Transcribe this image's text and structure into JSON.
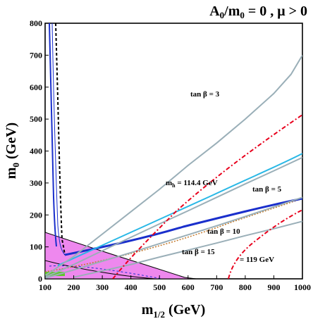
{
  "chart_data": {
    "type": "line",
    "title": "A0/m0 = 0 ,  μ > 0",
    "xlabel": "m1/2 (GeV)",
    "ylabel": "m0 (GeV)",
    "xlim": [
      100,
      1000
    ],
    "ylim": [
      0,
      800
    ],
    "x_ticks": [
      "100",
      "200",
      "300",
      "400",
      "500",
      "600",
      "700",
      "800",
      "900",
      "1000"
    ],
    "y_ticks": [
      "0",
      "100",
      "200",
      "300",
      "400",
      "500",
      "600",
      "700",
      "800"
    ],
    "grid": false,
    "colors": {
      "tan_beta": "#9aafb8",
      "mh_114": "#29b8e6",
      "relic_band": "#1a2fcc",
      "charged_lsp": "#ee88ee",
      "bsg": "#5ec72b",
      "mh_119": "#e8001c",
      "chargino": "#000000",
      "g2": "#c47a2c"
    },
    "series": [
      {
        "name": "tan β = 3",
        "values": [
          [
            100,
            10
          ],
          [
            200,
            70
          ],
          [
            300,
            140
          ],
          [
            400,
            210
          ],
          [
            500,
            280
          ],
          [
            600,
            355
          ],
          [
            700,
            425
          ],
          [
            800,
            500
          ],
          [
            900,
            580
          ],
          [
            960,
            640
          ],
          [
            1000,
            700
          ]
        ]
      },
      {
        "name": "tan β = 5",
        "values": [
          [
            100,
            5
          ],
          [
            200,
            45
          ],
          [
            300,
            88
          ],
          [
            400,
            130
          ],
          [
            500,
            172
          ],
          [
            600,
            213
          ],
          [
            700,
            255
          ],
          [
            800,
            297
          ],
          [
            900,
            338
          ],
          [
            1000,
            380
          ]
        ]
      },
      {
        "name": "tan β = 10",
        "values": [
          [
            100,
            2
          ],
          [
            200,
            28
          ],
          [
            300,
            55
          ],
          [
            400,
            82
          ],
          [
            500,
            110
          ],
          [
            600,
            138
          ],
          [
            700,
            166
          ],
          [
            800,
            195
          ],
          [
            900,
            225
          ],
          [
            1000,
            255
          ]
        ]
      },
      {
        "name": "tan β = 15",
        "values": [
          [
            200,
            5
          ],
          [
            300,
            25
          ],
          [
            400,
            45
          ],
          [
            500,
            68
          ],
          [
            600,
            90
          ],
          [
            700,
            112
          ],
          [
            800,
            135
          ],
          [
            900,
            157
          ],
          [
            1000,
            180
          ]
        ]
      },
      {
        "name": "m_h = 114.4 GeV",
        "values": [
          [
            150,
            50
          ],
          [
            200,
            78
          ],
          [
            300,
            120
          ],
          [
            400,
            163
          ],
          [
            500,
            205
          ],
          [
            600,
            248
          ],
          [
            700,
            290
          ],
          [
            800,
            332
          ],
          [
            900,
            375
          ],
          [
            1000,
            432
          ]
        ]
      },
      {
        "name": "= 119 GeV",
        "values": [
          [
            330,
            0
          ],
          [
            420,
            50
          ],
          [
            510,
            110
          ],
          [
            600,
            168
          ],
          [
            700,
            230
          ],
          [
            800,
            290
          ],
          [
            900,
            355
          ],
          [
            1000,
            410
          ]
        ]
      }
    ],
    "annotations": [
      "tan β = 3",
      "m_h = 114.4 GeV",
      "tan β = 5",
      "tan β = 10",
      "tan β = 15",
      "= 119 GeV"
    ]
  }
}
